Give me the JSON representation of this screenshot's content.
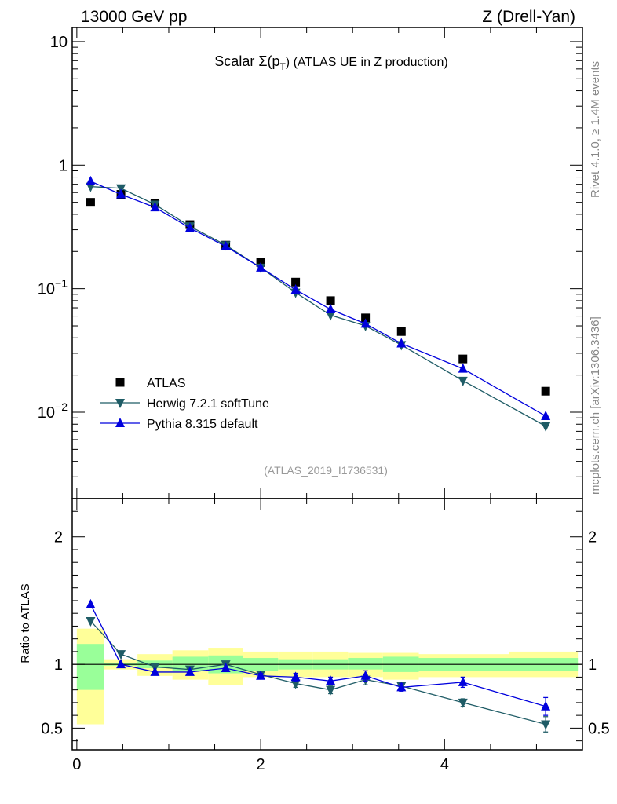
{
  "header": {
    "beam": "13000 GeV pp",
    "process": "Z (Drell-Yan)"
  },
  "side_labels": {
    "rivet": "Rivet 4.1.0, ≥ 1.4M events",
    "source": "mcplots.cern.ch [arXiv:1306.3436]"
  },
  "chart_data": [
    {
      "type": "scatter",
      "panel": "main",
      "title_prefix": "Scalar Σ(p",
      "title_sub": "T",
      "title_suffix": ") (ATLAS UE in Z production)",
      "analysis_id": "(ATLAS_2019_I1736531)",
      "yscale": "log",
      "ylim": [
        0.002,
        13
      ],
      "xlim": [
        -0.05,
        5.5
      ],
      "y_ticks": [
        {
          "value": 10,
          "mantissa": "10",
          "exp": ""
        },
        {
          "value": 1,
          "mantissa": "1",
          "exp": ""
        },
        {
          "value": 0.1,
          "mantissa": "10",
          "exp": "−1"
        },
        {
          "value": 0.01,
          "mantissa": "10",
          "exp": "−2"
        }
      ],
      "legend_position": "bottom-left",
      "series": [
        {
          "name": "ATLAS",
          "marker": "square",
          "color": "#000000",
          "x": [
            0.15,
            0.48,
            0.85,
            1.23,
            1.62,
            2.0,
            2.38,
            2.76,
            3.14,
            3.53,
            4.2,
            5.1
          ],
          "y": [
            0.5,
            0.58,
            0.49,
            0.33,
            0.225,
            0.163,
            0.113,
            0.08,
            0.058,
            0.045,
            0.027,
            0.0148
          ]
        },
        {
          "name": "Herwig 7.2.1 softTune",
          "marker": "triangle-down",
          "color": "#1f5c66",
          "x": [
            0.15,
            0.48,
            0.85,
            1.23,
            1.62,
            2.0,
            2.38,
            2.76,
            3.14,
            3.53,
            4.2,
            5.1
          ],
          "y": [
            0.67,
            0.65,
            0.48,
            0.32,
            0.225,
            0.148,
            0.093,
            0.061,
            0.05,
            0.035,
            0.018,
            0.0077
          ]
        },
        {
          "name": "Pythia 8.315 default",
          "marker": "triangle-up",
          "color": "#0000dd",
          "x": [
            0.15,
            0.48,
            0.85,
            1.23,
            1.62,
            2.0,
            2.38,
            2.76,
            3.14,
            3.53,
            4.2,
            5.1
          ],
          "y": [
            0.74,
            0.58,
            0.455,
            0.31,
            0.22,
            0.148,
            0.098,
            0.068,
            0.052,
            0.036,
            0.0225,
            0.0093
          ]
        }
      ]
    },
    {
      "type": "line",
      "panel": "ratio",
      "ylabel": "Ratio to ATLAS",
      "xlim": [
        -0.05,
        5.5
      ],
      "ylim": [
        0.33,
        2.3
      ],
      "y_ticks": [
        {
          "value": 2,
          "label": "2"
        },
        {
          "value": 1,
          "label": "1"
        },
        {
          "value": 0.5,
          "label": "0.5"
        }
      ],
      "x_ticks": [
        {
          "value": 0,
          "label": "0"
        },
        {
          "value": 2,
          "label": "2"
        },
        {
          "value": 4,
          "label": "4"
        }
      ],
      "bands": {
        "edges": [
          0.0,
          0.3,
          0.66,
          1.04,
          1.43,
          1.81,
          2.19,
          2.57,
          2.95,
          3.33,
          3.72,
          4.7,
          5.45
        ],
        "stat_lo": [
          0.8,
          0.99,
          0.97,
          0.95,
          0.93,
          0.95,
          0.96,
          0.96,
          0.96,
          0.94,
          0.95,
          0.95
        ],
        "stat_hi": [
          1.16,
          1.01,
          1.03,
          1.06,
          1.07,
          1.05,
          1.04,
          1.04,
          1.05,
          1.06,
          1.05,
          1.05
        ],
        "tot_lo": [
          0.53,
          0.96,
          0.91,
          0.88,
          0.84,
          0.9,
          0.9,
          0.9,
          0.9,
          0.88,
          0.9,
          0.9
        ],
        "tot_hi": [
          1.28,
          1.04,
          1.08,
          1.11,
          1.13,
          1.1,
          1.1,
          1.1,
          1.09,
          1.09,
          1.08,
          1.1
        ],
        "stat_color": "#99ff99",
        "total_color": "#ffff99"
      },
      "series": [
        {
          "name": "Herwig 7.2.1 softTune",
          "marker": "triangle-down",
          "color": "#1f5c66",
          "x": [
            0.15,
            0.48,
            0.85,
            1.23,
            1.62,
            2.0,
            2.38,
            2.76,
            3.14,
            3.53,
            4.2,
            5.1
          ],
          "y": [
            1.34,
            1.08,
            0.98,
            0.96,
            1.0,
            0.92,
            0.85,
            0.8,
            0.88,
            0.83,
            0.7,
            0.53
          ],
          "err": [
            0.0,
            0.0,
            0.0,
            0.0,
            0.0,
            0.01,
            0.03,
            0.03,
            0.04,
            0.03,
            0.03,
            0.06
          ]
        },
        {
          "name": "Pythia 8.315 default",
          "marker": "triangle-up",
          "color": "#0000dd",
          "x": [
            0.15,
            0.48,
            0.85,
            1.23,
            1.62,
            2.0,
            2.38,
            2.76,
            3.14,
            3.53,
            4.2,
            5.1
          ],
          "y": [
            1.47,
            1.0,
            0.94,
            0.94,
            0.97,
            0.91,
            0.9,
            0.87,
            0.91,
            0.82,
            0.86,
            0.67
          ],
          "err": [
            0.0,
            0.0,
            0.0,
            0.0,
            0.0,
            0.02,
            0.03,
            0.03,
            0.04,
            0.03,
            0.04,
            0.07
          ]
        }
      ]
    }
  ]
}
